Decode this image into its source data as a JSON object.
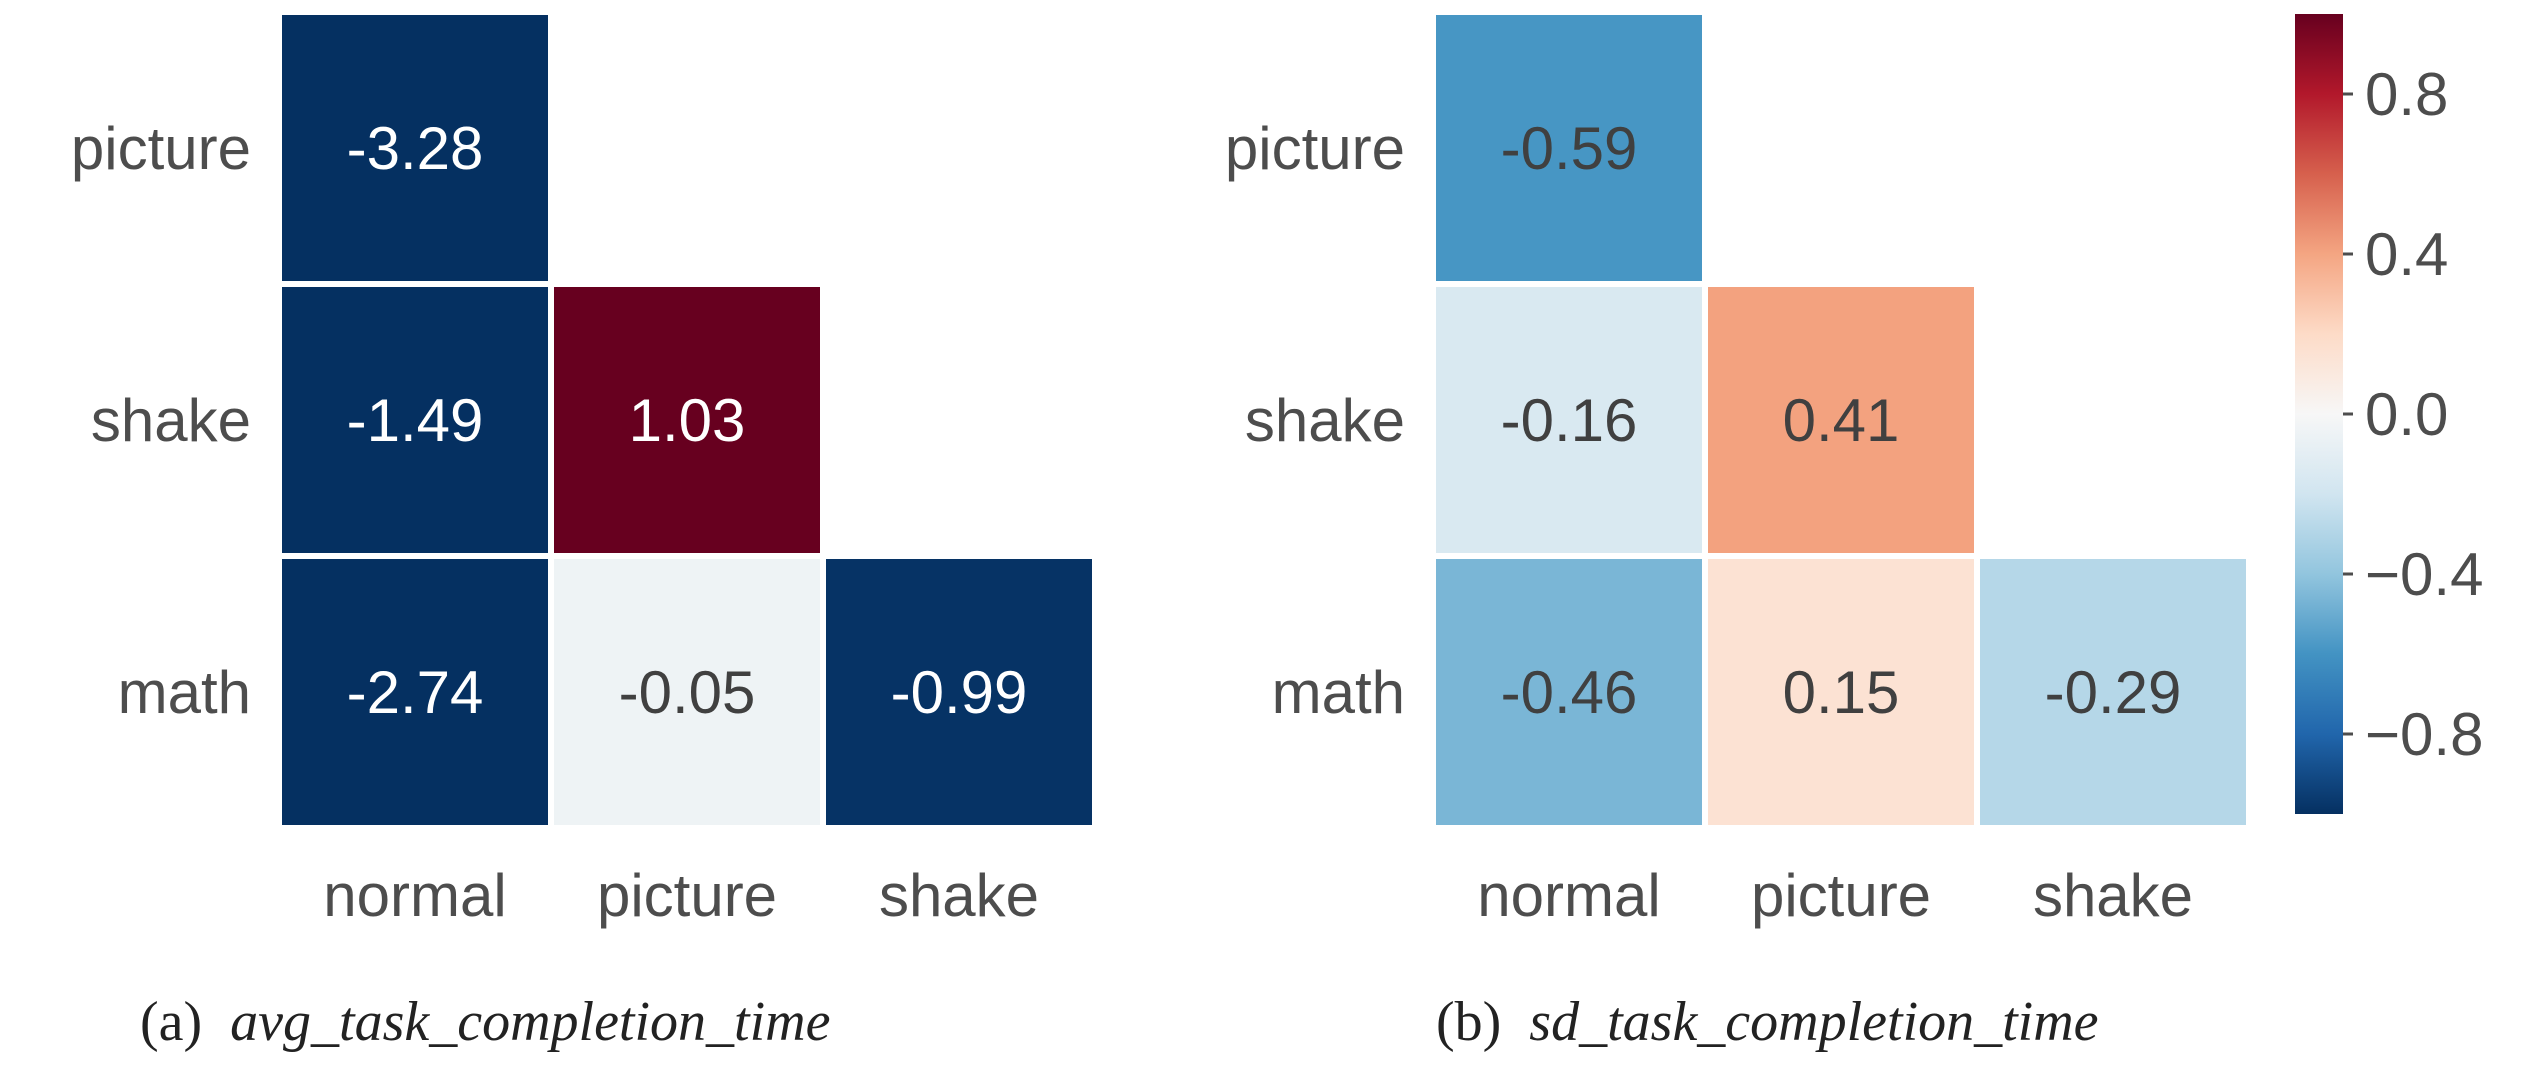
{
  "chart_data": [
    {
      "type": "heatmap",
      "caption_label": "(a)",
      "caption_name": "avg_task_completion_time",
      "x_categories": [
        "normal",
        "picture",
        "shake"
      ],
      "y_categories": [
        "picture",
        "shake",
        "math"
      ],
      "cells": [
        {
          "row": "picture",
          "col": "normal",
          "value": -3.28,
          "label": "-3.28"
        },
        {
          "row": "shake",
          "col": "normal",
          "value": -1.49,
          "label": "-1.49"
        },
        {
          "row": "shake",
          "col": "picture",
          "value": 1.03,
          "label": "1.03"
        },
        {
          "row": "math",
          "col": "normal",
          "value": -2.74,
          "label": "-2.74"
        },
        {
          "row": "math",
          "col": "picture",
          "value": -0.05,
          "label": "-0.05"
        },
        {
          "row": "math",
          "col": "shake",
          "value": -0.99,
          "label": "-0.99"
        }
      ],
      "mask": "upper-triangle"
    },
    {
      "type": "heatmap",
      "caption_label": "(b)",
      "caption_name": "sd_task_completion_time",
      "x_categories": [
        "normal",
        "picture",
        "shake"
      ],
      "y_categories": [
        "picture",
        "shake",
        "math"
      ],
      "cells": [
        {
          "row": "picture",
          "col": "normal",
          "value": -0.59,
          "label": "-0.59"
        },
        {
          "row": "shake",
          "col": "normal",
          "value": -0.16,
          "label": "-0.16"
        },
        {
          "row": "shake",
          "col": "picture",
          "value": 0.41,
          "label": "0.41"
        },
        {
          "row": "math",
          "col": "normal",
          "value": -0.46,
          "label": "-0.46"
        },
        {
          "row": "math",
          "col": "picture",
          "value": 0.15,
          "label": "0.15"
        },
        {
          "row": "math",
          "col": "shake",
          "value": -0.29,
          "label": "-0.29"
        }
      ],
      "mask": "upper-triangle"
    }
  ],
  "colorbar": {
    "colormap": "RdBu_r",
    "range": [
      -1,
      1
    ],
    "ticks": [
      0.8,
      0.4,
      0.0,
      -0.4,
      -0.8
    ],
    "tick_labels": [
      "0.8",
      "0.4",
      "0.0",
      "−0.4",
      "−0.8"
    ],
    "colors": [
      "#053061",
      "#2166ac",
      "#4393c3",
      "#92c5de",
      "#d1e5f0",
      "#f7f7f7",
      "#fddbc7",
      "#f4a582",
      "#d6604d",
      "#b2182b",
      "#67001f"
    ]
  }
}
